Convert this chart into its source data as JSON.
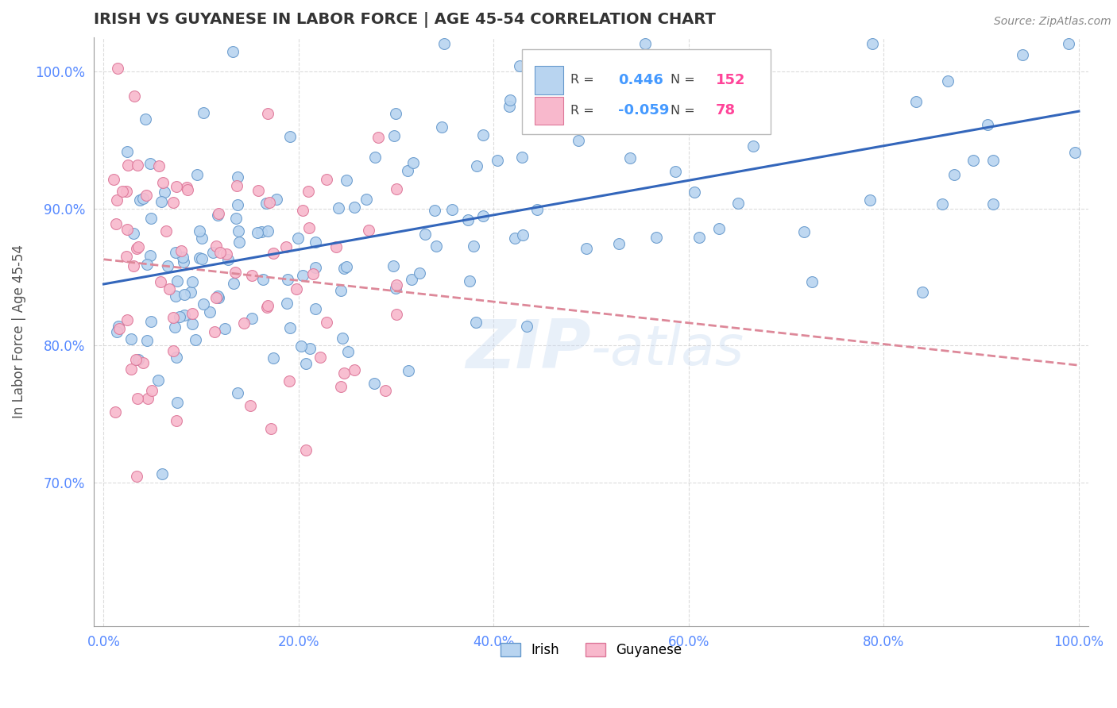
{
  "title": "IRISH VS GUYANESE IN LABOR FORCE | AGE 45-54 CORRELATION CHART",
  "source": "Source: ZipAtlas.com",
  "ylabel": "In Labor Force | Age 45-54",
  "watermark": "ZIP-atlas",
  "irish_R": 0.446,
  "irish_N": 152,
  "guyanese_R": -0.059,
  "guyanese_N": 78,
  "xlim": [
    -0.01,
    1.01
  ],
  "ylim": [
    0.595,
    1.025
  ],
  "x_ticks": [
    0.0,
    0.2,
    0.4,
    0.6,
    0.8,
    1.0
  ],
  "x_tick_labels": [
    "0.0%",
    "20.0%",
    "40.0%",
    "60.0%",
    "80.0%",
    "100.0%"
  ],
  "y_ticks": [
    0.7,
    0.8,
    0.9,
    1.0
  ],
  "y_tick_labels": [
    "70.0%",
    "80.0%",
    "90.0%",
    "100.0%"
  ],
  "irish_color": "#b8d4f0",
  "irish_edge_color": "#6699cc",
  "guyanese_color": "#f8b8cc",
  "guyanese_edge_color": "#dd7799",
  "trend_irish_color": "#3366bb",
  "trend_guyanese_color": "#dd8899",
  "background_color": "#ffffff",
  "grid_color": "#cccccc",
  "title_color": "#333333",
  "axis_label_color": "#555555",
  "tick_label_color": "#5588ff",
  "legend_R_color": "#4499ff",
  "legend_N_color": "#ff4499"
}
